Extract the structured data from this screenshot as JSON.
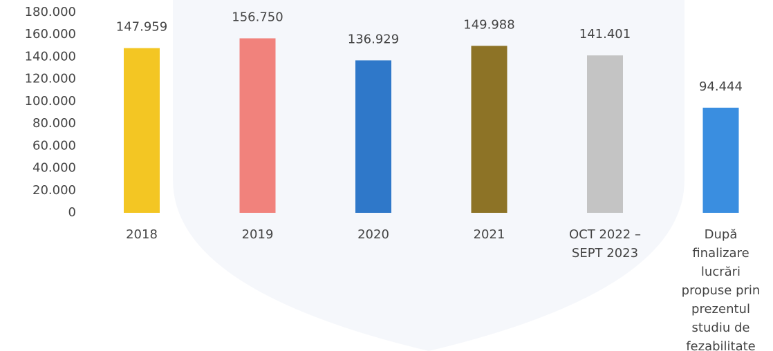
{
  "chart_data": {
    "type": "bar",
    "categories": [
      "2018",
      "2019",
      "2020",
      "2021",
      "OCT 2022 – SEPT 2023",
      "După finalizare lucrări propuse prin prezentul studiu de fezabilitate"
    ],
    "values": [
      147959,
      156750,
      136929,
      149988,
      141401,
      94444
    ],
    "value_labels": [
      "147.959",
      "156.750",
      "136.929",
      "149.988",
      "141.401",
      "94.444"
    ],
    "colors": [
      "#f3c623",
      "#f1827c",
      "#2f78c9",
      "#8d7326",
      "#c4c4c4",
      "#3a8ee0"
    ],
    "ylim": [
      0,
      180000
    ],
    "yticks": [
      0,
      {
        "value": 20000,
        "label": "20.000"
      },
      {
        "value": 40000,
        "label": "40.000"
      },
      {
        "value": 60000,
        "label": "60.000"
      },
      {
        "value": 80000,
        "label": "80.000"
      },
      {
        "value": 100000,
        "label": "100.000"
      },
      {
        "value": 120000,
        "label": "120.000"
      },
      {
        "value": 140000,
        "label": "140.000"
      },
      {
        "value": 160000,
        "label": "160.000"
      },
      {
        "value": 180000,
        "label": "180.000"
      }
    ]
  }
}
